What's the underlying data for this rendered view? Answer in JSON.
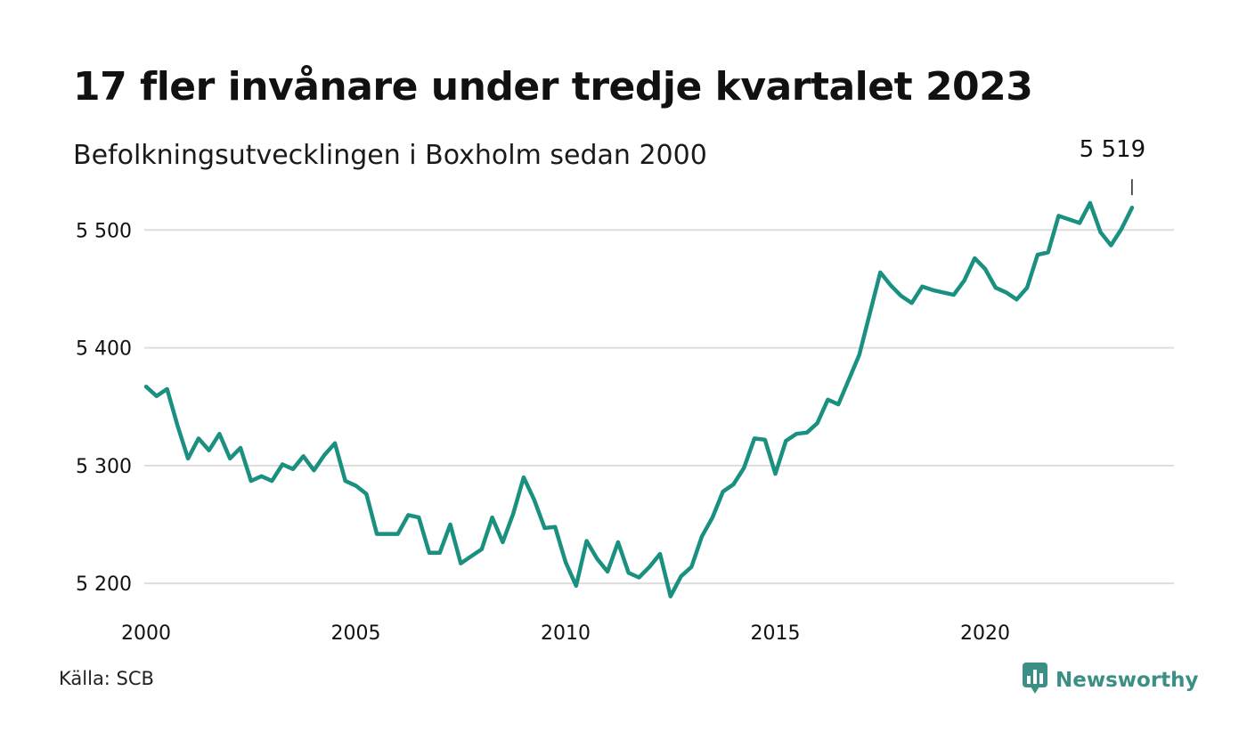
{
  "header": {
    "title": "17 fler invånare under tredje kvartalet 2023",
    "subtitle": "Befolkningsutvecklingen i Boxholm sedan 2000"
  },
  "footer": {
    "source": "Källa: SCB",
    "brand": "Newsworthy",
    "brand_icon": "bar-chart-speech-bubble-icon"
  },
  "colors": {
    "line": "#1a9080",
    "grid": "#dddddd",
    "text": "#111111",
    "brand": "#3b8f84"
  },
  "chart_data": {
    "type": "line",
    "ylim": [
      5185,
      5535
    ],
    "xlim": [
      2000,
      2024.5
    ],
    "y_ticks": [
      5200,
      5300,
      5400,
      5500
    ],
    "y_tick_labels": [
      "5 200",
      "5 300",
      "5 400",
      "5 500"
    ],
    "x_ticks": [
      2000,
      2005,
      2010,
      2015,
      2020
    ],
    "x_tick_labels": [
      "2000",
      "2005",
      "2010",
      "2015",
      "2020"
    ],
    "grid": "horizontal",
    "annotation": {
      "x": 2023.5,
      "y": 5519,
      "label": "5 519"
    },
    "series": [
      {
        "x": [
          2000.0,
          2000.25,
          2000.5,
          2000.75,
          2001.0,
          2001.25,
          2001.5,
          2001.75,
          2002.0,
          2002.25,
          2002.5,
          2002.75,
          2003.0,
          2003.25,
          2003.5,
          2003.75,
          2004.0,
          2004.25,
          2004.5,
          2004.75,
          2005.0,
          2005.25,
          2005.5,
          2005.75,
          2006.0,
          2006.25,
          2006.5,
          2006.75,
          2007.0,
          2007.25,
          2007.5,
          2007.75,
          2008.0,
          2008.25,
          2008.5,
          2008.75,
          2009.0,
          2009.25,
          2009.5,
          2009.75,
          2010.0,
          2010.25,
          2010.5,
          2010.75,
          2011.0,
          2011.25,
          2011.5,
          2011.75,
          2012.0,
          2012.25,
          2012.5,
          2012.75,
          2013.0,
          2013.25,
          2013.5,
          2013.75,
          2014.0,
          2014.25,
          2014.5,
          2014.75,
          2015.0,
          2015.25,
          2015.5,
          2015.75,
          2016.0,
          2016.25,
          2016.5,
          2016.75,
          2017.0,
          2017.25,
          2017.5,
          2017.75,
          2018.0,
          2018.25,
          2018.5,
          2018.75,
          2019.0,
          2019.25,
          2019.5,
          2019.75,
          2020.0,
          2020.25,
          2020.5,
          2020.75,
          2021.0,
          2021.25,
          2021.5,
          2021.75,
          2022.0,
          2022.25,
          2022.5,
          2022.75,
          2023.0,
          2023.25,
          2023.5
        ],
        "values": [
          5367,
          5359,
          5365,
          5334,
          5306,
          5323,
          5313,
          5327,
          5306,
          5315,
          5287,
          5291,
          5287,
          5301,
          5297,
          5308,
          5296,
          5309,
          5319,
          5287,
          5283,
          5276,
          5242,
          5242,
          5242,
          5258,
          5256,
          5226,
          5226,
          5250,
          5217,
          5223,
          5229,
          5256,
          5235,
          5259,
          5290,
          5271,
          5247,
          5248,
          5218,
          5198,
          5236,
          5221,
          5210,
          5235,
          5209,
          5205,
          5214,
          5225,
          5189,
          5206,
          5214,
          5240,
          5256,
          5278,
          5284,
          5298,
          5323,
          5322,
          5293,
          5321,
          5327,
          5328,
          5336,
          5356,
          5352,
          5373,
          5394,
          5429,
          5464,
          5453,
          5444,
          5438,
          5452,
          5449,
          5447,
          5445,
          5457,
          5476,
          5467,
          5451,
          5447,
          5441,
          5451,
          5479,
          5481,
          5512,
          5509,
          5506,
          5523,
          5498,
          5487,
          5501,
          5519
        ]
      }
    ]
  }
}
